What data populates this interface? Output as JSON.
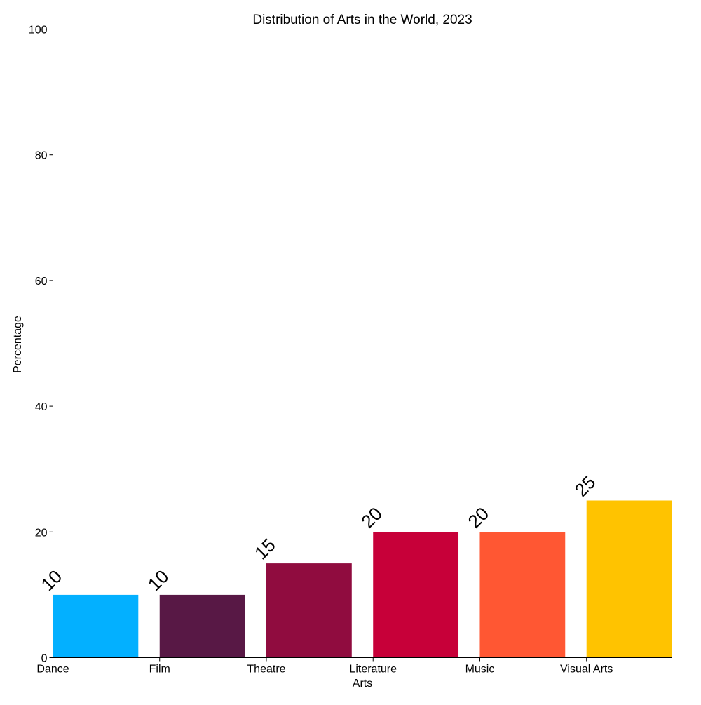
{
  "chart_data": {
    "type": "bar",
    "title": "Distribution of Arts in the World, 2023",
    "xlabel": "Arts",
    "ylabel": "Percentage",
    "categories": [
      "Dance",
      "Film",
      "Theatre",
      "Literature",
      "Music",
      "Visual Arts"
    ],
    "values": [
      10,
      10,
      15,
      20,
      20,
      25
    ],
    "data_labels": [
      "10",
      "10",
      "15",
      "20",
      "20",
      "25"
    ],
    "colors": [
      "#03b0ff",
      "#581845",
      "#900c3f",
      "#c70039",
      "#ff5733",
      "#ffc300"
    ],
    "ylim": [
      0,
      100
    ],
    "y_ticks": [
      "0",
      "20",
      "40",
      "60",
      "80",
      "100"
    ],
    "grid": false,
    "legend": "none"
  }
}
